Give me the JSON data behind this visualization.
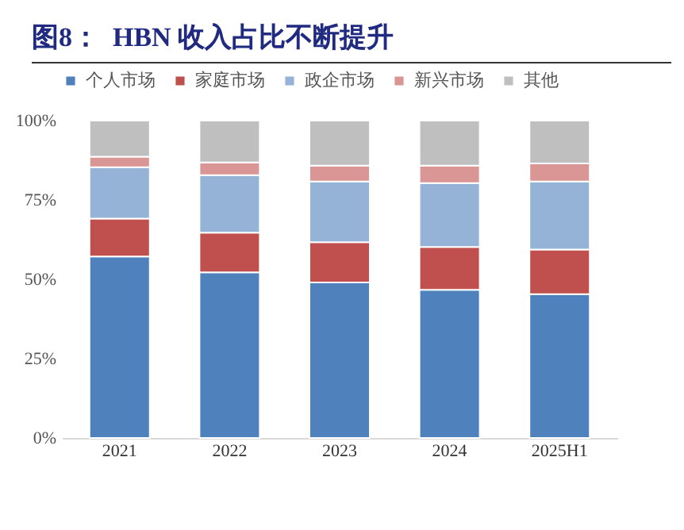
{
  "chart_data": {
    "type": "bar",
    "title": "图8：  HBN 收入占比不断提升",
    "stacked": true,
    "legend": "top",
    "grid": false,
    "categories": [
      "2021",
      "2022",
      "2023",
      "2024",
      "2025H1"
    ],
    "ylim": [
      0,
      100
    ],
    "yticks": [
      {
        "value": 0,
        "label": "0%"
      },
      {
        "value": 25,
        "label": "25%"
      },
      {
        "value": 50,
        "label": "50%"
      },
      {
        "value": 75,
        "label": "75%"
      },
      {
        "value": 100,
        "label": "100%"
      }
    ],
    "series": [
      {
        "name": "个人市场",
        "color": "#4f81bd",
        "values": [
          57.2,
          52.2,
          49.0,
          46.7,
          45.3
        ]
      },
      {
        "name": "家庭市场",
        "color": "#c0504d",
        "values": [
          11.9,
          12.5,
          12.7,
          13.5,
          14.1
        ]
      },
      {
        "name": "政企市场",
        "color": "#95b3d7",
        "values": [
          16.2,
          18.1,
          19.1,
          20.1,
          21.4
        ]
      },
      {
        "name": "新兴市场",
        "color": "#da9694",
        "values": [
          3.3,
          4.0,
          5.0,
          5.5,
          5.7
        ]
      },
      {
        "name": "其他",
        "color": "#bfbfbf",
        "values": [
          11.4,
          13.2,
          14.2,
          14.2,
          13.5
        ]
      }
    ]
  }
}
